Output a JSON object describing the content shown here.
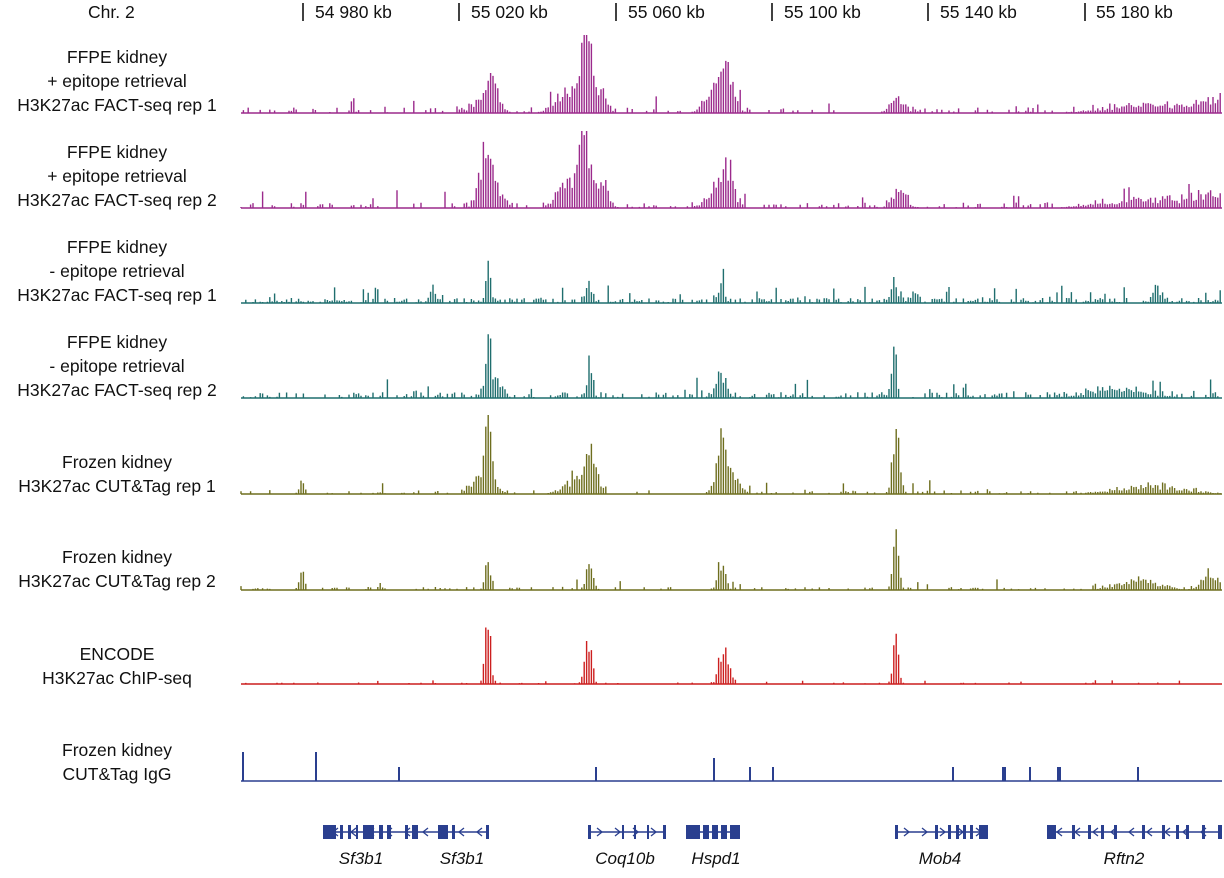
{
  "chromosome": "Chr. 2",
  "coordinates": [
    "54 980 kb",
    "55 020 kb",
    "55 060 kb",
    "55 100 kb",
    "55 140 kb",
    "55 180 kb"
  ],
  "colors": {
    "plus_retrieval": "#9b2a8c",
    "minus_retrieval": "#1f6e6e",
    "cut_tag": "#6e6e1e",
    "encode": "#cc1f1f",
    "igg": "#2a3f8f"
  },
  "tracks": [
    {
      "lines": [
        "FFPE kidney",
        "+ epitope retrieval",
        "H3K27ac FACT-seq rep 1"
      ],
      "color_key": "plus_retrieval"
    },
    {
      "lines": [
        "FFPE kidney",
        "+ epitope retrieval",
        "H3K27ac FACT-seq rep 2"
      ],
      "color_key": "plus_retrieval"
    },
    {
      "lines": [
        "FFPE kidney",
        "- epitope retrieval",
        "H3K27ac FACT-seq rep 1"
      ],
      "color_key": "minus_retrieval"
    },
    {
      "lines": [
        "FFPE kidney",
        "- epitope retrieval",
        "H3K27ac FACT-seq rep 2"
      ],
      "color_key": "minus_retrieval"
    },
    {
      "lines": [
        "Frozen kidney",
        "H3K27ac CUT&Tag rep 1"
      ],
      "color_key": "cut_tag"
    },
    {
      "lines": [
        "Frozen kidney",
        "H3K27ac CUT&Tag rep 2"
      ],
      "color_key": "cut_tag"
    },
    {
      "lines": [
        "ENCODE",
        "H3K27ac ChIP-seq"
      ],
      "color_key": "encode"
    },
    {
      "lines": [
        "Frozen kidney",
        "CUT&Tag IgG"
      ],
      "color_key": "igg"
    }
  ],
  "genes": [
    "Sf3b1",
    "Sf3b1",
    "Coq10b",
    "Hspd1",
    "Mob4",
    "Rftn2"
  ]
}
